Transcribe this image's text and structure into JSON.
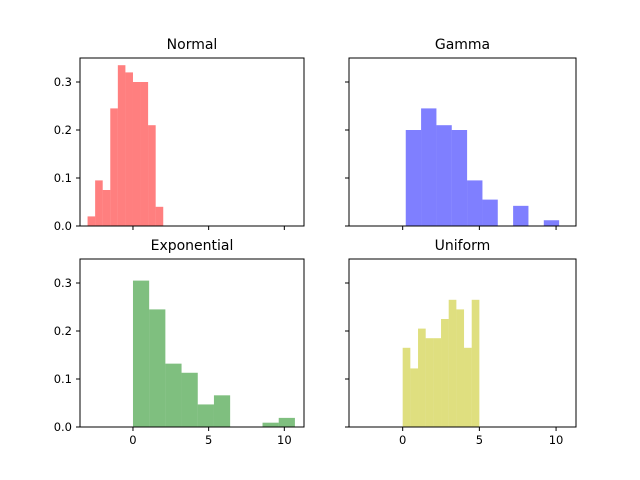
{
  "chart_data": [
    {
      "type": "bar",
      "title": "Normal",
      "color": "#ff0000",
      "alpha": 0.5,
      "xlim": [
        -3.5,
        11.3
      ],
      "ylim": [
        0,
        0.35
      ],
      "xticks": [
        0,
        5,
        10
      ],
      "xtick_labels_visible": false,
      "yticks": [
        0.0,
        0.1,
        0.2,
        0.3
      ],
      "ytick_labels": [
        "0.0",
        "0.1",
        "0.2",
        "0.3"
      ],
      "ytick_labels_visible": true,
      "bin_edges": [
        -3.0,
        -2.5,
        -2.0,
        -1.5,
        -1.0,
        -0.5,
        0.0,
        0.5,
        1.0,
        1.5,
        2.0,
        2.5
      ],
      "values": [
        0.02,
        0.095,
        0.075,
        0.245,
        0.335,
        0.32,
        0.3,
        0.3,
        0.21,
        0.04,
        0.0
      ]
    },
    {
      "type": "bar",
      "title": "Gamma",
      "color": "#0000ff",
      "alpha": 0.5,
      "xlim": [
        -3.5,
        11.3
      ],
      "ylim": [
        0,
        0.35
      ],
      "xticks": [
        0,
        5,
        10
      ],
      "xtick_labels_visible": false,
      "yticks": [
        0.0,
        0.1,
        0.2,
        0.3
      ],
      "ytick_labels": [
        "0.0",
        "0.1",
        "0.2",
        "0.3"
      ],
      "ytick_labels_visible": false,
      "bin_edges": [
        0.2,
        1.2,
        2.2,
        3.2,
        4.2,
        5.2,
        6.2,
        7.2,
        8.2,
        9.2,
        10.2
      ],
      "values": [
        0.2,
        0.245,
        0.21,
        0.2,
        0.095,
        0.055,
        0.0,
        0.042,
        0.0,
        0.012
      ]
    },
    {
      "type": "bar",
      "title": "Exponential",
      "color": "#008000",
      "alpha": 0.5,
      "xlim": [
        -3.5,
        11.3
      ],
      "ylim": [
        0,
        0.35
      ],
      "xticks": [
        0,
        5,
        10
      ],
      "xtick_labels": [
        "0",
        "5",
        "10"
      ],
      "xtick_labels_visible": true,
      "yticks": [
        0.0,
        0.1,
        0.2,
        0.3
      ],
      "ytick_labels": [
        "0.0",
        "0.1",
        "0.2",
        "0.3"
      ],
      "ytick_labels_visible": true,
      "bin_edges": [
        0.0,
        1.07,
        2.14,
        3.21,
        4.28,
        5.35,
        6.42,
        7.49,
        8.56,
        9.63,
        10.7
      ],
      "values": [
        0.305,
        0.245,
        0.132,
        0.113,
        0.047,
        0.066,
        0.0,
        0.0,
        0.009,
        0.019
      ]
    },
    {
      "type": "bar",
      "title": "Uniform",
      "color": "#bfbf00",
      "alpha": 0.5,
      "xlim": [
        -3.5,
        11.3
      ],
      "ylim": [
        0,
        0.35
      ],
      "xticks": [
        0,
        5,
        10
      ],
      "xtick_labels": [
        "0",
        "5",
        "10"
      ],
      "xtick_labels_visible": true,
      "yticks": [
        0.0,
        0.1,
        0.2,
        0.3
      ],
      "ytick_labels": [
        "0.0",
        "0.1",
        "0.2",
        "0.3"
      ],
      "ytick_labels_visible": false,
      "bin_edges": [
        0.0,
        0.5,
        1.0,
        1.5,
        2.0,
        2.5,
        3.0,
        3.5,
        4.0,
        4.5,
        5.0
      ],
      "values": [
        0.165,
        0.122,
        0.205,
        0.185,
        0.185,
        0.225,
        0.265,
        0.245,
        0.165,
        0.265
      ]
    }
  ]
}
